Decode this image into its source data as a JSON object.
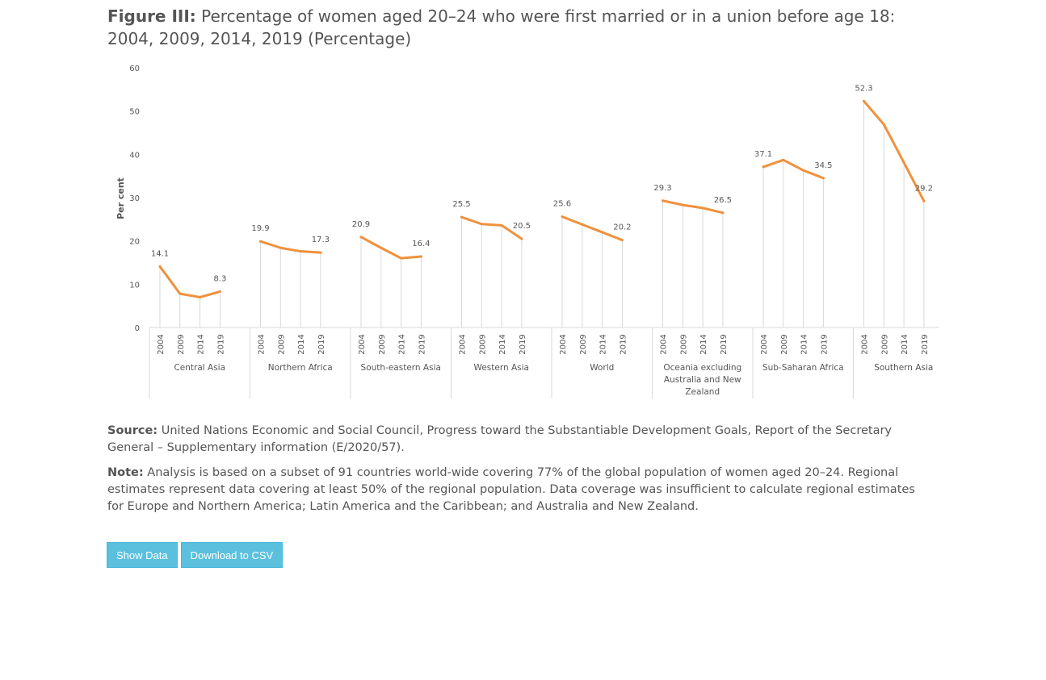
{
  "title": {
    "lead": "Figure III:",
    "text": "Percentage of women aged 20–24 who were first married or in a union before age 18: 2004, 2009, 2014, 2019 (Percentage)"
  },
  "chart_data": {
    "type": "line",
    "ylabel": "Per cent",
    "ylim": [
      0,
      60
    ],
    "yticks": [
      0,
      10,
      20,
      30,
      40,
      50,
      60
    ],
    "years": [
      "2004",
      "2009",
      "2014",
      "2019"
    ],
    "grid": false,
    "line_color": "#f0913c",
    "drop_line_color": "#d9d9d9",
    "groups": [
      {
        "name": "Central Asia",
        "values": [
          14.1,
          7.8,
          7.0,
          8.3
        ],
        "labels": [
          "14.1",
          "",
          "",
          "8.3"
        ]
      },
      {
        "name": "Northern Africa",
        "values": [
          19.9,
          18.4,
          17.6,
          17.3
        ],
        "labels": [
          "19.9",
          "",
          "",
          "17.3"
        ]
      },
      {
        "name": "South-eastern Asia",
        "values": [
          20.9,
          18.4,
          16.0,
          16.4
        ],
        "labels": [
          "20.9",
          "",
          "",
          "16.4"
        ]
      },
      {
        "name": "Western Asia",
        "values": [
          25.5,
          23.9,
          23.6,
          20.5
        ],
        "labels": [
          "25.5",
          "",
          "",
          "20.5"
        ]
      },
      {
        "name": "World",
        "values": [
          25.6,
          23.8,
          22.0,
          20.2
        ],
        "labels": [
          "25.6",
          "",
          "",
          "20.2"
        ]
      },
      {
        "name": "Oceania excluding Australia and New Zealand",
        "values": [
          29.3,
          28.3,
          27.6,
          26.5
        ],
        "labels": [
          "29.3",
          "",
          "",
          "26.5"
        ]
      },
      {
        "name": "Sub-Saharan Africa",
        "values": [
          37.1,
          38.7,
          36.3,
          34.5
        ],
        "labels": [
          "37.1",
          "",
          "",
          "34.5"
        ]
      },
      {
        "name": "Southern Asia",
        "values": [
          52.3,
          46.9,
          38.1,
          29.2
        ],
        "labels": [
          "52.3",
          "",
          "",
          "29.2"
        ]
      }
    ]
  },
  "source": {
    "label": "Source:",
    "text": "United Nations Economic and Social Council, Progress toward the Substantiable Development Goals, Report of the Secretary General – Supplementary information (E/2020/57)."
  },
  "note": {
    "label": "Note:",
    "text": "Analysis is based on a subset of 91 countries world-wide covering 77% of the global population of women aged 20–24. Regional estimates represent data covering at least 50% of the regional population. Data coverage was insufficient to calculate regional estimates for Europe and Northern America; Latin America and the Caribbean; and Australia and New Zealand."
  },
  "buttons": {
    "show_data": "Show Data",
    "download_csv": "Download to CSV"
  }
}
